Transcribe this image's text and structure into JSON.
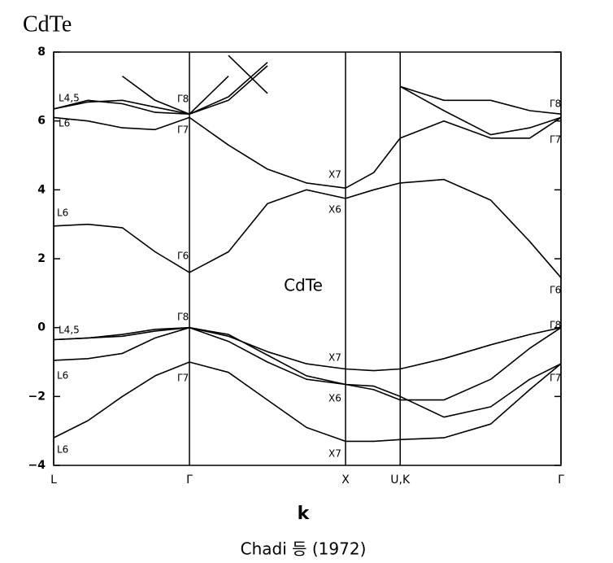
{
  "chart_data": {
    "type": "line",
    "title": "CdTe",
    "annotation": "CdTe",
    "xlabel": "k",
    "caption": "Chadi 등 (1972)",
    "color": "#000000",
    "xlim": [
      0,
      3.25
    ],
    "ylim": [
      -4,
      8
    ],
    "xticks": [
      {
        "value": 0,
        "label": "L"
      },
      {
        "value": 0.87,
        "label": "Γ"
      },
      {
        "value": 1.87,
        "label": "X"
      },
      {
        "value": 2.22,
        "label": "U,K"
      },
      {
        "value": 3.25,
        "label": "Γ"
      }
    ],
    "yticks": [
      {
        "value": -4,
        "label": "−4"
      },
      {
        "value": -2,
        "label": "−2"
      },
      0,
      2,
      4,
      6,
      8
    ],
    "x": [
      0,
      0.22,
      0.44,
      0.65,
      0.87,
      1.12,
      1.37,
      1.62,
      1.87,
      2.05,
      2.22,
      2.5,
      2.8,
      3.05,
      3.25
    ],
    "series": [
      {
        "values": [
          -3.2,
          -2.7,
          -2.0,
          -1.4,
          -1.0,
          -1.3,
          -2.1,
          -2.9,
          -3.3,
          -3.3,
          -3.25,
          -3.2,
          -2.8,
          -1.8,
          -1.05
        ]
      },
      {
        "values": [
          -0.95,
          -0.9,
          -0.75,
          -0.3,
          0,
          -0.4,
          -1.0,
          -1.5,
          -1.65,
          -1.7,
          -2.0,
          -2.6,
          -2.3,
          -1.5,
          -1.05
        ]
      },
      {
        "values": [
          -0.35,
          -0.3,
          -0.25,
          -0.1,
          0,
          -0.2,
          -0.8,
          -1.4,
          -1.65,
          -1.8,
          -2.1,
          -2.1,
          -1.5,
          -0.6,
          0
        ]
      },
      {
        "values": [
          -0.35,
          -0.3,
          -0.2,
          -0.05,
          0,
          -0.25,
          -0.7,
          -1.05,
          -1.2,
          -1.25,
          -1.2,
          -0.9,
          -0.5,
          -0.2,
          0
        ]
      },
      {
        "values": [
          2.95,
          3.0,
          2.9,
          2.2,
          1.6,
          2.2,
          3.6,
          4.0,
          3.75,
          4.0,
          4.2,
          4.3,
          3.7,
          2.5,
          1.45
        ]
      },
      {
        "values": [
          6.1,
          6.0,
          5.8,
          5.75,
          6.1,
          5.3,
          4.6,
          4.2,
          4.05,
          4.5,
          5.5,
          6.0,
          5.5,
          5.5,
          6.1
        ]
      },
      {
        "values": [
          6.35,
          6.6,
          6.5,
          6.25,
          6.2,
          6.6,
          7.6,
          null,
          null,
          null,
          7.0,
          6.3,
          5.6,
          5.8,
          6.1
        ]
      },
      {
        "values": [
          6.35,
          6.55,
          6.6,
          6.4,
          6.2,
          6.7,
          7.7,
          null,
          null,
          null,
          7.0,
          6.6,
          6.6,
          6.3,
          6.2
        ]
      },
      {
        "values": [
          null,
          null,
          7.3,
          6.6,
          6.2,
          7.3,
          null,
          null,
          null,
          null,
          null,
          null,
          null,
          null,
          null
        ]
      },
      {
        "values": [
          null,
          null,
          null,
          null,
          null,
          7.9,
          6.8,
          null,
          null,
          null,
          null,
          null,
          null,
          null,
          null
        ]
      }
    ],
    "point_labels": [
      "L4,5",
      "L6",
      "Γ8",
      "Γ7",
      "X7",
      "X6",
      "L6",
      "Γ6",
      "Γ8",
      "Γ7",
      "Γ6",
      "Γ8",
      "Γ8",
      "L4,5",
      "X7",
      "L6",
      "Γ7",
      "X6",
      "Γ7",
      "L6",
      "X7"
    ]
  }
}
